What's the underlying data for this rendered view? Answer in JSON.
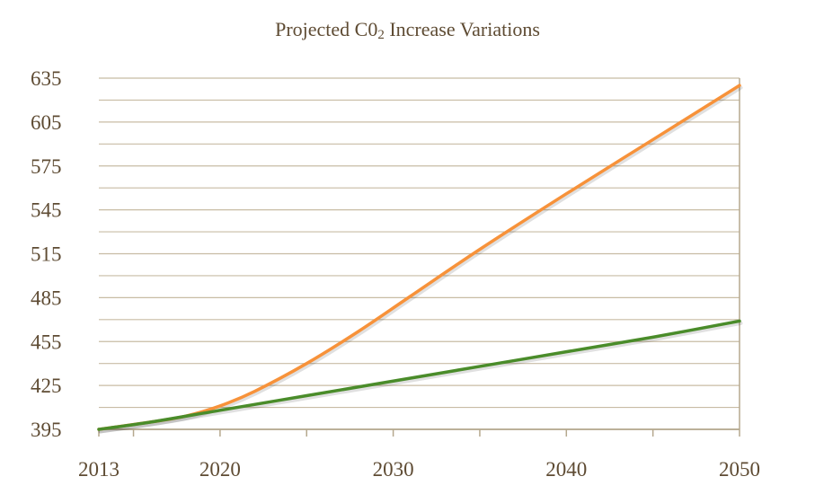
{
  "chart_data": {
    "type": "line",
    "title": {
      "main": "Projected C0",
      "sub": "2",
      "rest": " Increase Variations"
    },
    "xlabel": "",
    "ylabel": "",
    "x_ticks": [
      2013,
      2020,
      2030,
      2040,
      2050
    ],
    "y_ticks": [
      395,
      425,
      455,
      485,
      515,
      545,
      575,
      605,
      635
    ],
    "xlim": [
      2013,
      2050
    ],
    "ylim": [
      395,
      635
    ],
    "grid": true,
    "series": [
      {
        "color": "#f7923a",
        "x": [
          2013,
          2016,
          2018,
          2020,
          2022,
          2025,
          2028,
          2031,
          2035,
          2040,
          2045,
          2050
        ],
        "values": [
          395,
          400,
          404,
          411,
          421,
          440,
          462,
          486,
          518,
          556,
          593,
          630
        ]
      },
      {
        "color": "#4a8c2a",
        "x": [
          2013,
          2016,
          2020,
          2025,
          2030,
          2035,
          2040,
          2045,
          2050
        ],
        "values": [
          395,
          400,
          408,
          418,
          428,
          438,
          448,
          458,
          469
        ]
      }
    ]
  },
  "colors": {
    "grid": "#c8bca4",
    "axis": "#b5a88e",
    "text": "#5e4b33"
  }
}
